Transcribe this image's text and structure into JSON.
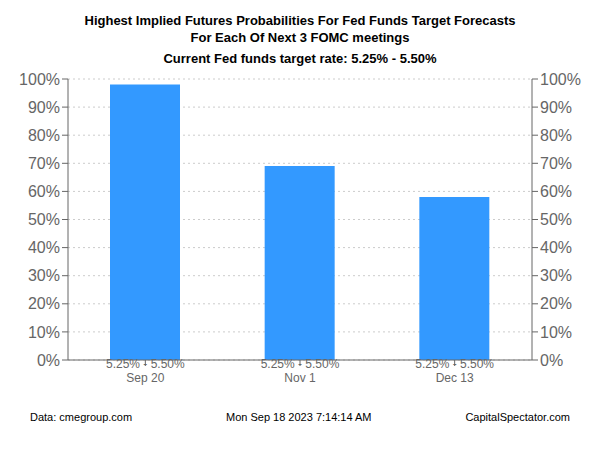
{
  "chart_data": {
    "type": "bar",
    "title": "Highest Implied Futures Probabilities For Fed Funds Target Forecasts\nFor Each Of Next 3 FOMC meetings",
    "subtitle": "Current Fed funds target rate: 5.25% - 5.50%",
    "categories": [
      "5.25% - 5.50%\nSep 20",
      "5.25% - 5.50%\nNov 1",
      "5.25% - 5.50%\nDec 13"
    ],
    "values": [
      98.0,
      69.0,
      58.0
    ],
    "color": "#3399ff",
    "ylim": [
      0,
      100
    ],
    "yticks": [
      {
        "value": 0,
        "label": "0%"
      },
      {
        "value": 10,
        "label": "10%"
      },
      {
        "value": 20,
        "label": "20%"
      },
      {
        "value": 30,
        "label": "30%"
      },
      {
        "value": 40,
        "label": "40%"
      },
      {
        "value": 50,
        "label": "50%"
      },
      {
        "value": 60,
        "label": "60%"
      },
      {
        "value": 70,
        "label": "70%"
      },
      {
        "value": 80,
        "label": "80%"
      },
      {
        "value": 90,
        "label": "90%"
      },
      {
        "value": 100,
        "label": "100%"
      }
    ],
    "y2lim": [
      0,
      100
    ],
    "y2ticks": [
      {
        "value": 0,
        "label": "0%"
      },
      {
        "value": 10,
        "label": "10%"
      },
      {
        "value": 20,
        "label": "20%"
      },
      {
        "value": 30,
        "label": "30%"
      },
      {
        "value": 40,
        "label": "40%"
      },
      {
        "value": 50,
        "label": "50%"
      },
      {
        "value": 60,
        "label": "60%"
      },
      {
        "value": 70,
        "label": "70%"
      },
      {
        "value": 80,
        "label": "80%"
      },
      {
        "value": 90,
        "label": "90%"
      },
      {
        "value": 100,
        "label": "100%"
      }
    ],
    "grid": true,
    "annotations": [
      "Data: cmegroup.com",
      "Mon Sep 18 2023 7:14:14 AM",
      "CapitalSpectator.com"
    ]
  }
}
